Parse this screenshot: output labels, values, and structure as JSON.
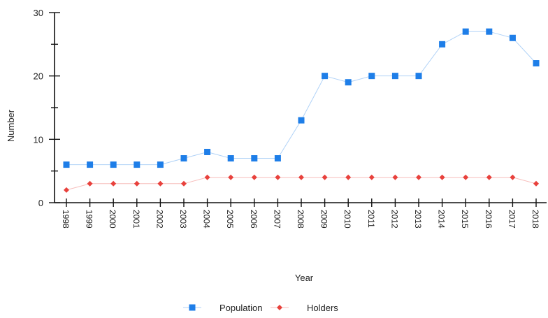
{
  "chart_data": {
    "type": "line",
    "title": "",
    "xlabel": "Year",
    "ylabel": "Number",
    "ylim": [
      0,
      30
    ],
    "yticks": [
      "0",
      "10",
      "20",
      "30"
    ],
    "x": [
      "1998",
      "1999",
      "2000",
      "2001",
      "2002",
      "2003",
      "2004",
      "2005",
      "2006",
      "2007",
      "2008",
      "2009",
      "2010",
      "2011",
      "2012",
      "2013",
      "2014",
      "2015",
      "2016",
      "2017",
      "2018"
    ],
    "series": [
      {
        "name": "Population",
        "color": "#1e7ee8",
        "marker": "square",
        "values": [
          6,
          6,
          6,
          6,
          6,
          7,
          8,
          7,
          7,
          7,
          13,
          20,
          19,
          20,
          20,
          20,
          25,
          27,
          27,
          26,
          22
        ]
      },
      {
        "name": "Holders",
        "color": "#e8413c",
        "marker": "diamond",
        "values": [
          2,
          3,
          3,
          3,
          3,
          3,
          4,
          4,
          4,
          4,
          4,
          4,
          4,
          4,
          4,
          4,
          4,
          4,
          4,
          4,
          3
        ]
      }
    ],
    "grid": false,
    "legend_position": "bottom"
  }
}
